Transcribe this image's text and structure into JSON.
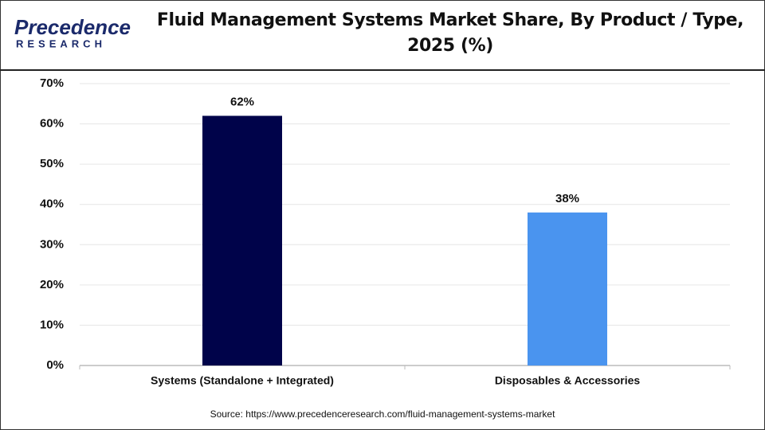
{
  "logo": {
    "name": "Precedence",
    "tagline": "RESEARCH"
  },
  "chart_data": {
    "type": "bar",
    "title": "Fluid Management Systems Market Share, By Product / Type, 2025 (%)",
    "categories": [
      "Systems (Standalone + Integrated)",
      "Disposables & Accessories"
    ],
    "values": [
      62,
      38
    ],
    "value_labels": [
      "62%",
      "38%"
    ],
    "colors": [
      "#00034a",
      "#4a94ef"
    ],
    "ylim": [
      0,
      70
    ],
    "yticks": [
      {
        "value": 0,
        "label": "0%"
      },
      {
        "value": 10,
        "label": "10%"
      },
      {
        "value": 20,
        "label": "20%"
      },
      {
        "value": 30,
        "label": "30%"
      },
      {
        "value": 40,
        "label": "40%"
      },
      {
        "value": 50,
        "label": "50%"
      },
      {
        "value": 60,
        "label": "60%"
      },
      {
        "value": 70,
        "label": "70%"
      }
    ],
    "grid": true,
    "source": "Source: https://www.precedenceresearch.com/fluid-management-systems-market"
  }
}
